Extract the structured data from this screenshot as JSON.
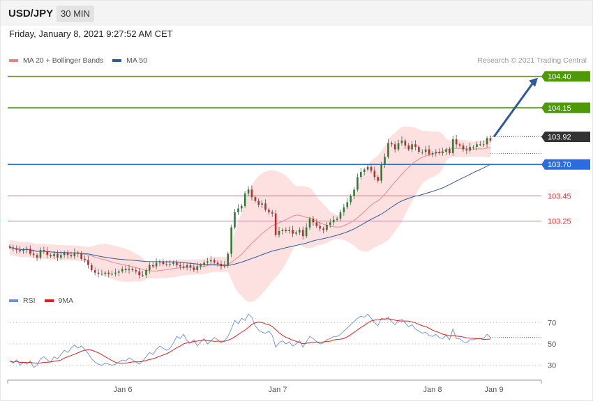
{
  "header": {
    "symbol": "USD/JPY",
    "timeframe": "30 MIN",
    "timestamp": "Friday, January 8, 2021 9:27:52 AM CET"
  },
  "credit": "Research © 2021 Trading Central",
  "colors": {
    "bollinger": "#f08080",
    "band_fill": "#fddcdc",
    "ma50": "#2e5a9c",
    "resistance": "#4e9a06",
    "support": "#f08080",
    "pivot": "#2a6de0",
    "up_candle": "#2e7d32",
    "down_candle": "#c62828",
    "rsi": "#6a8fde",
    "rsi_ma": "#e02020",
    "arrow": "#2e5a9c"
  },
  "chart_data": [
    {
      "type": "candlestick",
      "title": "USD/JPY 30 MIN",
      "legend": [
        {
          "name": "MA 20 + Bollinger Bands",
          "color": "#f08080"
        },
        {
          "name": "MA 50",
          "color": "#2e5a9c"
        }
      ],
      "x_ticks": [
        "Jan 6",
        "Jan 7",
        "Jan 8",
        "Jan 9"
      ],
      "y_range": [
        102.65,
        104.52
      ],
      "current_price": 103.92,
      "levels": [
        {
          "label": "104.40",
          "value": 104.4,
          "kind": "resistance"
        },
        {
          "label": "104.15",
          "value": 104.15,
          "kind": "resistance"
        },
        {
          "label": "103.92",
          "value": 103.92,
          "kind": "current"
        },
        {
          "label": "103.70",
          "value": 103.7,
          "kind": "pivot"
        },
        {
          "label": "103.45",
          "value": 103.45,
          "kind": "support"
        },
        {
          "label": "103.25",
          "value": 103.25,
          "kind": "support"
        }
      ],
      "target_arrow": {
        "from": 103.92,
        "to": 104.4
      },
      "close_series": [
        103.04,
        103.03,
        103.02,
        103.01,
        103.02,
        103.03,
        102.99,
        102.98,
        102.96,
        103.02,
        103.01,
        102.98,
        102.97,
        102.99,
        102.96,
        102.98,
        103.0,
        102.98,
        102.97,
        103.0,
        102.99,
        102.95,
        102.94,
        102.9,
        102.86,
        102.84,
        102.83,
        102.83,
        102.84,
        102.83,
        102.83,
        102.84,
        102.85,
        102.87,
        102.86,
        102.87,
        102.86,
        102.85,
        102.82,
        102.82,
        102.86,
        102.9,
        102.89,
        102.92,
        102.93,
        102.91,
        102.91,
        102.91,
        102.92,
        102.9,
        102.89,
        102.88,
        102.9,
        102.88,
        102.86,
        102.89,
        102.9,
        102.92,
        102.93,
        102.94,
        102.92,
        102.91,
        102.89,
        102.9,
        102.99,
        103.2,
        103.32,
        103.35,
        103.37,
        103.47,
        103.5,
        103.44,
        103.41,
        103.38,
        103.39,
        103.34,
        103.32,
        103.31,
        103.14,
        103.17,
        103.18,
        103.17,
        103.18,
        103.15,
        103.16,
        103.18,
        103.13,
        103.2,
        103.27,
        103.24,
        103.21,
        103.19,
        103.18,
        103.22,
        103.24,
        103.26,
        103.27,
        103.32,
        103.36,
        103.4,
        103.45,
        103.5,
        103.6,
        103.64,
        103.66,
        103.68,
        103.65,
        103.6,
        103.57,
        103.7,
        103.76,
        103.87,
        103.86,
        103.82,
        103.87,
        103.89,
        103.85,
        103.82,
        103.86,
        103.84,
        103.8,
        103.8,
        103.82,
        103.78,
        103.79,
        103.8,
        103.79,
        103.8,
        103.82,
        103.79,
        103.9,
        103.86,
        103.85,
        103.82,
        103.81,
        103.84,
        103.84,
        103.86,
        103.86,
        103.86,
        103.91,
        103.89
      ]
    },
    {
      "type": "line",
      "title": "RSI",
      "legend": [
        {
          "name": "RSI",
          "color": "#6a8fde"
        },
        {
          "name": "9MA",
          "color": "#e02020"
        }
      ],
      "y_ticks": [
        30,
        50,
        70
      ],
      "rsi": [
        34,
        32,
        35,
        30,
        33,
        31,
        34,
        28,
        30,
        36,
        38,
        35,
        33,
        38,
        36,
        40,
        44,
        42,
        46,
        49,
        46,
        48,
        45,
        41,
        36,
        33,
        31,
        30,
        32,
        31,
        30,
        31,
        33,
        35,
        34,
        37,
        35,
        33,
        31,
        34,
        38,
        42,
        40,
        45,
        48,
        46,
        44,
        46,
        51,
        57,
        55,
        59,
        53,
        51,
        54,
        48,
        52,
        55,
        50,
        53,
        56,
        54,
        51,
        53,
        57,
        64,
        72,
        69,
        74,
        72,
        78,
        75,
        67,
        63,
        61,
        60,
        62,
        58,
        47,
        51,
        53,
        50,
        52,
        48,
        50,
        53,
        47,
        52,
        57,
        55,
        52,
        50,
        51,
        54,
        55,
        57,
        57,
        59,
        62,
        65,
        68,
        71,
        74,
        76,
        75,
        78,
        74,
        70,
        67,
        74,
        73,
        75,
        71,
        68,
        72,
        73,
        70,
        66,
        68,
        64,
        62,
        60,
        61,
        58,
        57,
        59,
        56,
        55,
        58,
        54,
        64,
        55,
        55,
        52,
        51,
        54,
        54,
        55,
        55,
        55,
        59,
        56
      ]
    }
  ],
  "axis": {
    "x_labels": [
      "Jan 6",
      "Jan 7",
      "Jan 8",
      "Jan 9"
    ],
    "rsi_labels": [
      "70",
      "50",
      "30"
    ]
  }
}
